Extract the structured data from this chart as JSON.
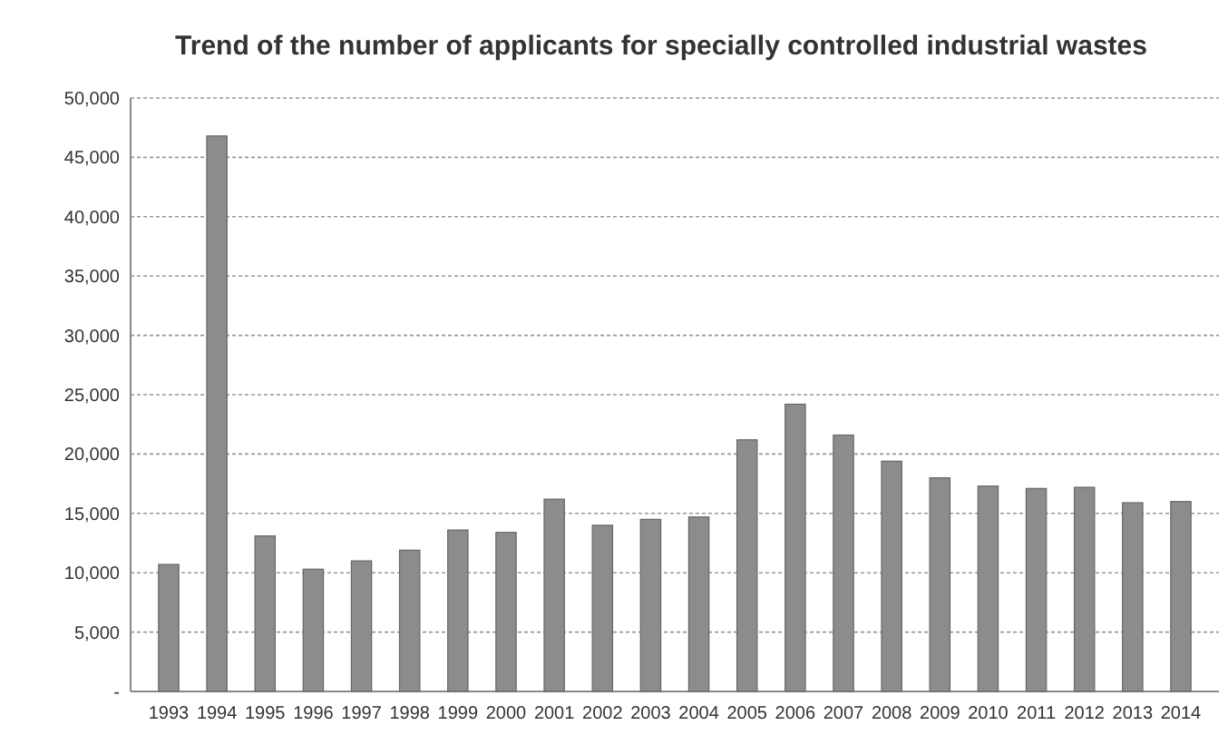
{
  "chart_data": {
    "type": "bar",
    "title": "Trend of the number of applicants for specially controlled industrial wastes",
    "categories": [
      "1993",
      "1994",
      "1995",
      "1996",
      "1997",
      "1998",
      "1999",
      "2000",
      "2001",
      "2002",
      "2003",
      "2004",
      "2005",
      "2006",
      "2007",
      "2008",
      "2009",
      "2010",
      "2011",
      "2012",
      "2013",
      "2014"
    ],
    "values": [
      10700,
      46800,
      13100,
      10300,
      11000,
      11900,
      13600,
      13400,
      16200,
      14000,
      14500,
      14700,
      21200,
      24200,
      21600,
      19400,
      18000,
      17300,
      17100,
      17200,
      15900,
      16000
    ],
    "color": "#8c8c8c",
    "ylim": [
      0,
      50000
    ],
    "yticks": [
      {
        "value": 0,
        "label": "-"
      },
      {
        "value": 5000,
        "label": "5,000"
      },
      {
        "value": 10000,
        "label": "10,000"
      },
      {
        "value": 15000,
        "label": "15,000"
      },
      {
        "value": 20000,
        "label": "20,000"
      },
      {
        "value": 25000,
        "label": "25,000"
      },
      {
        "value": 30000,
        "label": "30,000"
      },
      {
        "value": 35000,
        "label": "35,000"
      },
      {
        "value": 40000,
        "label": "40,000"
      },
      {
        "value": 45000,
        "label": "45,000"
      },
      {
        "value": 50000,
        "label": "50,000"
      }
    ],
    "grid": "y"
  }
}
